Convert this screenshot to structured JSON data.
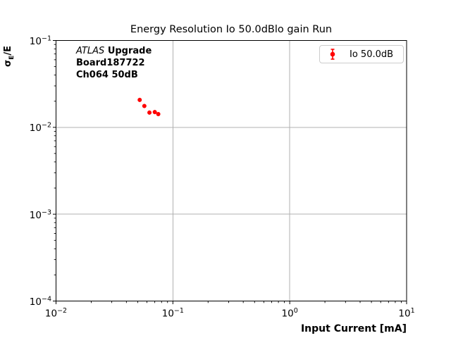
{
  "figure": {
    "title": "Energy Resolution Io 50.0dBlo gain Run",
    "xlabel": "Input Current [mA]",
    "ylabel": {
      "sigma": "σ",
      "sub": "E",
      "rest": "/E"
    }
  },
  "annotation": {
    "line1_italic": "ATLAS",
    "line1_bold": "Upgrade",
    "line2": "Board187722",
    "line3": "Ch064 50dB"
  },
  "legend": {
    "label": "Io 50.0dB",
    "marker_color": "#ff0000"
  },
  "colors": {
    "marker": "#ff0000",
    "grid": "#b0b0b0",
    "spine": "#000000",
    "legend_border": "#cccccc",
    "text": "#000000"
  },
  "chart_data": {
    "type": "scatter",
    "title": "Energy Resolution Io 50.0dBlo gain Run",
    "xlabel": "Input Current [mA]",
    "ylabel": "σE/E",
    "xscale": "log",
    "yscale": "log",
    "xlim": [
      0.01,
      10
    ],
    "ylim": [
      0.0001,
      0.1
    ],
    "grid": true,
    "legend_position": "upper right",
    "series": [
      {
        "name": "Io 50.0dB",
        "color": "#ff0000",
        "marker": "o",
        "x": [
          0.052,
          0.057,
          0.063,
          0.07,
          0.075
        ],
        "y": [
          0.0207,
          0.0176,
          0.0148,
          0.015,
          0.0142
        ]
      }
    ],
    "x_ticks": [
      {
        "value": 0.01,
        "mantissa": "10",
        "exp": "−2"
      },
      {
        "value": 0.1,
        "mantissa": "10",
        "exp": "−1"
      },
      {
        "value": 1,
        "mantissa": "10",
        "exp": "0"
      },
      {
        "value": 10,
        "mantissa": "10",
        "exp": "1"
      }
    ],
    "y_ticks": [
      {
        "value": 0.1,
        "mantissa": "10",
        "exp": "−1"
      },
      {
        "value": 0.01,
        "mantissa": "10",
        "exp": "−2"
      },
      {
        "value": 0.001,
        "mantissa": "10",
        "exp": "−3"
      },
      {
        "value": 0.0001,
        "mantissa": "10",
        "exp": "−4"
      }
    ]
  }
}
